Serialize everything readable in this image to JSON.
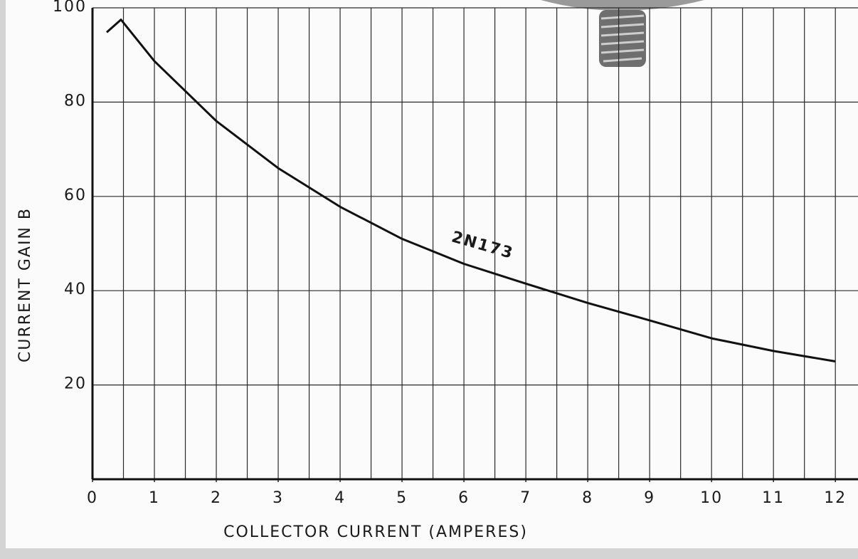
{
  "chart_data": {
    "type": "line",
    "x_label": "COLLECTOR CURRENT (AMPERES)",
    "y_label": "CURRENT GAIN B",
    "annotation": "2N173",
    "series": [
      {
        "name": "2N173",
        "color": "#111111",
        "x": [
          0.23,
          0.46,
          1,
          2,
          3,
          4,
          5,
          6,
          7,
          8,
          9,
          10,
          11,
          12
        ],
        "values": [
          94.8,
          97.5,
          88.7,
          76,
          66,
          57.8,
          51,
          45.7,
          41.5,
          37.4,
          33.7,
          29.9,
          27.2,
          25
        ]
      }
    ],
    "xlim": [
      0,
      12.4
    ],
    "ylim": [
      0,
      100
    ],
    "xticks": [
      0,
      1,
      2,
      3,
      4,
      5,
      6,
      7,
      8,
      9,
      10,
      11,
      12
    ],
    "yticks": [
      20,
      40,
      60,
      80,
      100
    ],
    "x_grid_step": 0.5,
    "grid": true
  }
}
